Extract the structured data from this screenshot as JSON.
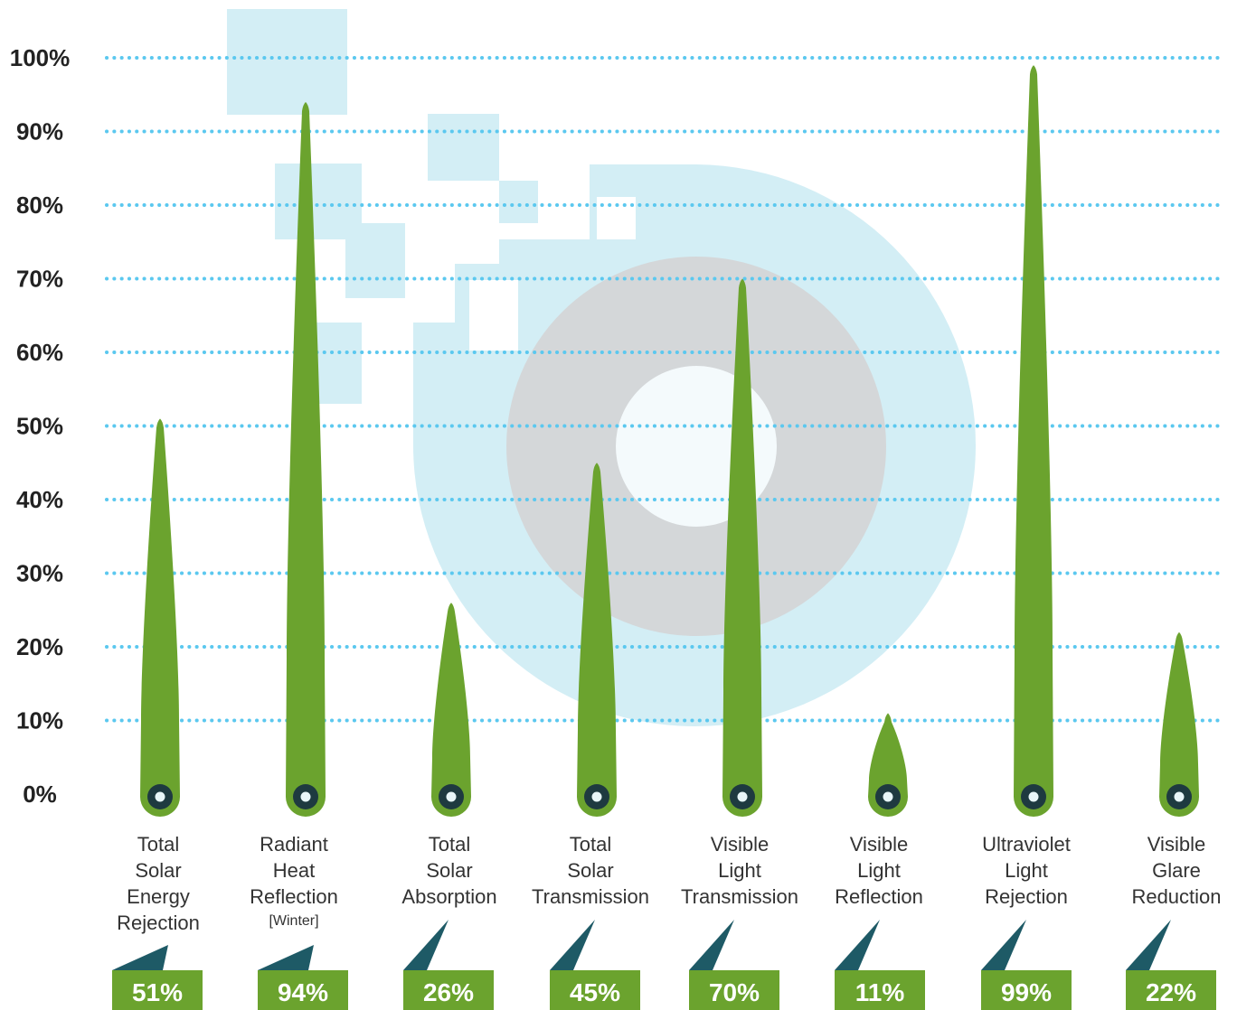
{
  "chart_data": {
    "type": "bar",
    "title": "",
    "xlabel": "",
    "ylabel": "",
    "ylim": [
      0,
      100
    ],
    "y_ticks": [
      "0%",
      "10%",
      "20%",
      "30%",
      "40%",
      "50%",
      "60%",
      "70%",
      "80%",
      "90%",
      "100%"
    ],
    "grid": true,
    "categories": [
      {
        "lines": [
          "Total",
          "Solar",
          "Energy",
          "Rejection"
        ],
        "sub": ""
      },
      {
        "lines": [
          "Radiant",
          "Heat",
          "Reflection"
        ],
        "sub": "[Winter]"
      },
      {
        "lines": [
          "Total",
          "Solar",
          "Absorption"
        ],
        "sub": ""
      },
      {
        "lines": [
          "Total",
          "Solar",
          "Transmission"
        ],
        "sub": ""
      },
      {
        "lines": [
          "Visible",
          "Light",
          "Transmission"
        ],
        "sub": ""
      },
      {
        "lines": [
          "Visible",
          "Light",
          "Reflection"
        ],
        "sub": ""
      },
      {
        "lines": [
          "Ultraviolet",
          "Light",
          "Rejection"
        ],
        "sub": ""
      },
      {
        "lines": [
          "Visible",
          "Glare",
          "Reduction"
        ],
        "sub": ""
      }
    ],
    "values": [
      51,
      94,
      26,
      45,
      70,
      11,
      99,
      22
    ],
    "value_labels": [
      "51%",
      "94%",
      "26%",
      "45%",
      "70%",
      "11%",
      "99%",
      "22%"
    ],
    "colors": {
      "bar": "#6ba32e",
      "grid": "#5bc8ef",
      "badge_flag": "#1e5a66",
      "pin": "#1e3a40",
      "bg_light": "#d3eef5",
      "bg_gray": "#d4d7d9",
      "bg_center": "#f4fafc"
    }
  }
}
